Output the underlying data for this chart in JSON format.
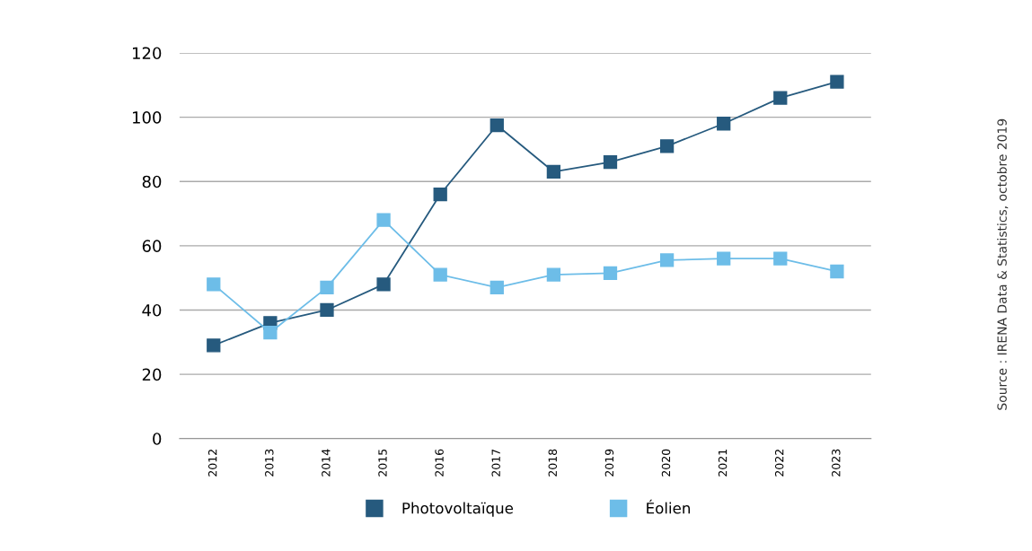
{
  "chart_data": {
    "type": "line",
    "categories": [
      "2012",
      "2013",
      "2014",
      "2015",
      "2016",
      "2017",
      "2018",
      "2019",
      "2020",
      "2021",
      "2022",
      "2023"
    ],
    "series": [
      {
        "name": "Photovoltaïque",
        "color": "#265a7e",
        "values": [
          29,
          36,
          40,
          48,
          76,
          97.5,
          83,
          86,
          91,
          98,
          106,
          111
        ]
      },
      {
        "name": "Éolien",
        "color": "#6dbde8",
        "values": [
          48,
          33,
          47,
          68,
          51,
          47,
          51,
          51.5,
          55.5,
          56,
          56,
          52
        ]
      }
    ],
    "ylim": [
      0,
      120
    ],
    "yticks": [
      0,
      20,
      40,
      60,
      80,
      100,
      120
    ],
    "grid": "y",
    "legend": "bottom",
    "marker": "square",
    "line_style": "solid",
    "annotations": [
      "Source : IRENA Data & Statistics, octobre 2019"
    ]
  }
}
